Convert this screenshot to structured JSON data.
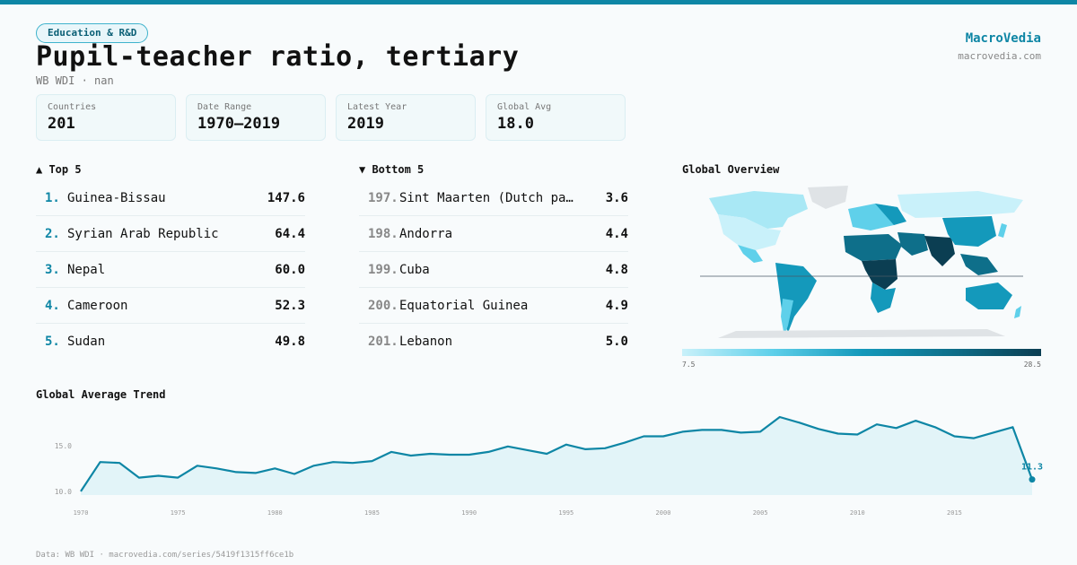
{
  "category": "Education & R&D",
  "title": "Pupil-teacher ratio, tertiary",
  "subtitle": "WB WDI · nan",
  "brand": {
    "name": "MacroVedia",
    "url": "macrovedia.com"
  },
  "stats": [
    {
      "label": "Countries",
      "value": "201"
    },
    {
      "label": "Date Range",
      "value": "1970–2019"
    },
    {
      "label": "Latest Year",
      "value": "2019"
    },
    {
      "label": "Global Avg",
      "value": "18.0"
    }
  ],
  "top5": {
    "heading": "▲ Top 5",
    "items": [
      {
        "rank": "1.",
        "name": "Guinea-Bissau",
        "value": "147.6"
      },
      {
        "rank": "2.",
        "name": "Syrian Arab Republic",
        "value": "64.4"
      },
      {
        "rank": "3.",
        "name": "Nepal",
        "value": "60.0"
      },
      {
        "rank": "4.",
        "name": "Cameroon",
        "value": "52.3"
      },
      {
        "rank": "5.",
        "name": "Sudan",
        "value": "49.8"
      }
    ]
  },
  "bottom5": {
    "heading": "▼ Bottom 5",
    "items": [
      {
        "rank": "197.",
        "name": "Sint Maarten (Dutch pa…",
        "value": "3.6"
      },
      {
        "rank": "198.",
        "name": "Andorra",
        "value": "4.4"
      },
      {
        "rank": "199.",
        "name": "Cuba",
        "value": "4.8"
      },
      {
        "rank": "200.",
        "name": "Equatorial Guinea",
        "value": "4.9"
      },
      {
        "rank": "201.",
        "name": "Lebanon",
        "value": "5.0"
      }
    ]
  },
  "map": {
    "heading": "Global Overview",
    "legend_min": "7.5",
    "legend_max": "28.5",
    "colors": {
      "low": "#c9f1fa",
      "mid": "#1499bb",
      "high": "#0b3e52",
      "nodata": "#dfe3e6"
    }
  },
  "chart_data": {
    "type": "area",
    "title": "Global Average Trend",
    "x": [
      1970,
      1971,
      1972,
      1973,
      1974,
      1975,
      1976,
      1977,
      1978,
      1979,
      1980,
      1981,
      1982,
      1983,
      1984,
      1985,
      1986,
      1987,
      1988,
      1989,
      1990,
      1991,
      1992,
      1993,
      1994,
      1995,
      1996,
      1997,
      1998,
      1999,
      2000,
      2001,
      2002,
      2003,
      2004,
      2005,
      2006,
      2007,
      2008,
      2009,
      2010,
      2011,
      2012,
      2013,
      2014,
      2015,
      2016,
      2017,
      2018,
      2019
    ],
    "values": [
      10.0,
      13.2,
      13.1,
      11.5,
      11.7,
      11.5,
      12.8,
      12.5,
      12.1,
      12.0,
      12.5,
      11.9,
      12.8,
      13.2,
      13.1,
      13.3,
      14.3,
      13.9,
      14.1,
      14.0,
      14.0,
      14.3,
      14.9,
      14.5,
      14.1,
      15.1,
      14.6,
      14.7,
      15.3,
      16.0,
      16.0,
      16.5,
      16.7,
      16.7,
      16.4,
      16.5,
      18.1,
      17.5,
      16.8,
      16.3,
      16.2,
      17.3,
      16.9,
      17.7,
      17.0,
      16.0,
      15.8,
      16.4,
      17.0,
      11.3
    ],
    "ylim": [
      9.6,
      18.3
    ],
    "yticks": [
      "10.0",
      "15.0"
    ],
    "xticks": [
      "1970",
      "1975",
      "1980",
      "1985",
      "1990",
      "1995",
      "2000",
      "2005",
      "2010",
      "2015"
    ],
    "last_label": "11.3",
    "grid": false,
    "colors": {
      "line": "#0e86a5",
      "fill": "#d8f1f7"
    }
  },
  "footer": "Data: WB WDI · macrovedia.com/series/5419f1315ff6ce1b"
}
